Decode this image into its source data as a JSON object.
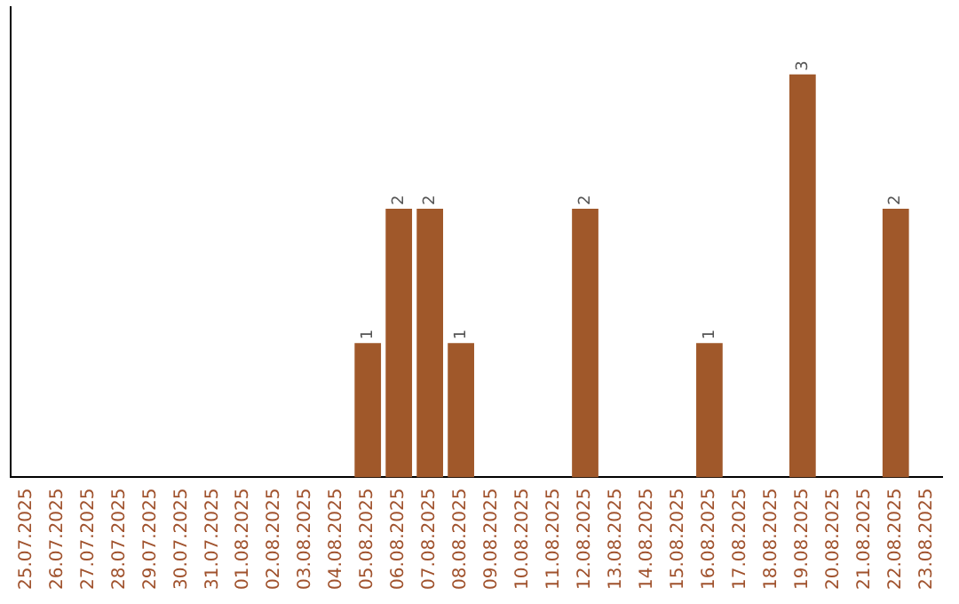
{
  "chart_data": {
    "type": "bar",
    "categories": [
      "25.07.2025",
      "26.07.2025",
      "27.07.2025",
      "28.07.2025",
      "29.07.2025",
      "30.07.2025",
      "31.07.2025",
      "01.08.2025",
      "02.08.2025",
      "03.08.2025",
      "04.08.2025",
      "05.08.2025",
      "06.08.2025",
      "07.08.2025",
      "08.08.2025",
      "09.08.2025",
      "10.08.2025",
      "11.08.2025",
      "12.08.2025",
      "13.08.2025",
      "14.08.2025",
      "15.08.2025",
      "16.08.2025",
      "17.08.2025",
      "18.08.2025",
      "19.08.2025",
      "20.08.2025",
      "21.08.2025",
      "22.08.2025",
      "23.08.2025"
    ],
    "values": [
      0,
      0,
      0,
      0,
      0,
      0,
      0,
      0,
      0,
      0,
      0,
      1,
      2,
      2,
      1,
      0,
      0,
      0,
      2,
      0,
      0,
      0,
      1,
      0,
      0,
      3,
      0,
      0,
      2,
      0
    ],
    "value_labels": [
      null,
      null,
      null,
      null,
      null,
      null,
      null,
      null,
      null,
      null,
      null,
      "1",
      "2",
      "2",
      "1",
      null,
      null,
      null,
      "2",
      null,
      null,
      null,
      "1",
      null,
      null,
      "3",
      null,
      null,
      "2",
      null
    ],
    "color": "#a0582a"
  }
}
